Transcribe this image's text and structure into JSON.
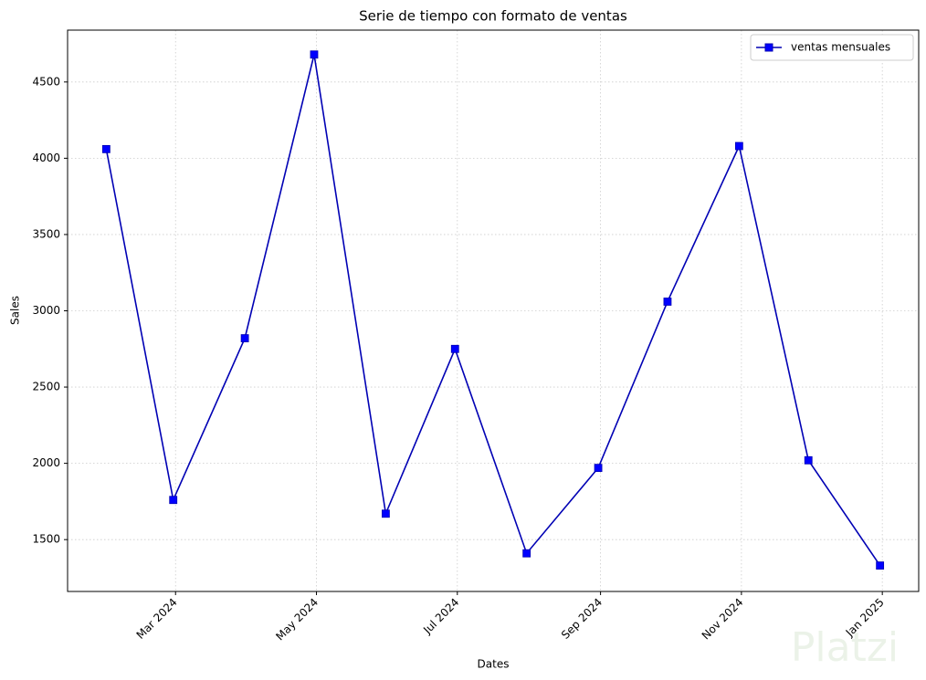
{
  "chart_data": {
    "type": "line",
    "title": "Serie de tiempo con formato de ventas",
    "x_label": "Dates",
    "y_label": "Sales",
    "x": [
      "2024-01",
      "2024-02",
      "2024-03",
      "2024-04",
      "2024-05",
      "2024-06",
      "2024-07",
      "2024-08",
      "2024-09",
      "2024-10",
      "2024-11",
      "2024-12"
    ],
    "series": [
      {
        "name": "ventas mensuales",
        "color": "#0000b4",
        "marker_color": "#0000ff",
        "marker": "square",
        "values": [
          4060,
          1760,
          2820,
          4680,
          1670,
          2750,
          1410,
          1970,
          3060,
          4080,
          2020,
          1330
        ]
      }
    ],
    "ylim": [
      1160,
      4840
    ],
    "yticks": [
      1500,
      2000,
      2500,
      3000,
      3500,
      4000,
      4500
    ],
    "xticks": [
      {
        "value": "2024-03",
        "label": "Mar 2024"
      },
      {
        "value": "2024-05",
        "label": "May 2024"
      },
      {
        "value": "2024-07",
        "label": "Jul 2024"
      },
      {
        "value": "2024-09",
        "label": "Sep 2024"
      },
      {
        "value": "2024-11",
        "label": "Nov 2024"
      },
      {
        "value": "2025-01",
        "label": "Jan 2025"
      }
    ],
    "grid": true,
    "legend": "upper right",
    "watermark": "Platzi"
  }
}
